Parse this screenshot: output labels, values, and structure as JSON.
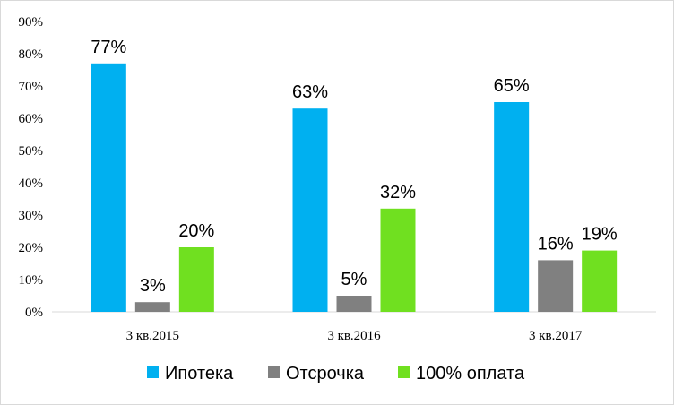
{
  "chart_data": {
    "type": "bar",
    "categories": [
      "3 кв.2015",
      "3 кв.2016",
      "3 кв.2017"
    ],
    "series": [
      {
        "name": "Ипотека",
        "color": "#00b0f0",
        "values": [
          77,
          63,
          65
        ],
        "labels": [
          "77%",
          "63%",
          "65%"
        ]
      },
      {
        "name": "Отсрочка",
        "color": "#808080",
        "values": [
          3,
          5,
          16
        ],
        "labels": [
          "3%",
          "5%",
          "16%"
        ]
      },
      {
        "name": "100% оплата",
        "color": "#70e020",
        "values": [
          20,
          32,
          19
        ],
        "labels": [
          "20%",
          "32%",
          "19%"
        ]
      }
    ],
    "ylim": [
      0,
      90
    ],
    "yticks": [
      0,
      10,
      20,
      30,
      40,
      50,
      60,
      70,
      80,
      90
    ],
    "ytick_labels": [
      "0%",
      "10%",
      "20%",
      "30%",
      "40%",
      "50%",
      "60%",
      "70%",
      "80%",
      "90%"
    ],
    "grid": false,
    "legend_position": "bottom",
    "title": "",
    "xlabel": "",
    "ylabel": ""
  }
}
